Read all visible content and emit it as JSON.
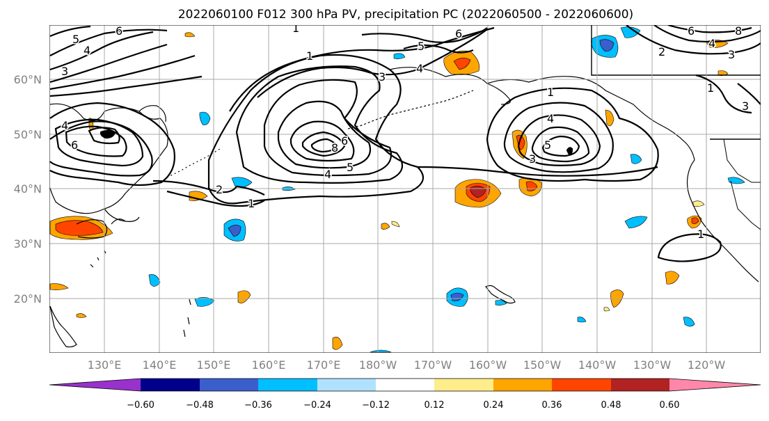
{
  "title": "2022060100 F012 300 hPa PV, precipitation PC (2022060500 - 2022060600)",
  "latitude_labels": [
    "60°N",
    "50°N",
    "40°N",
    "30°N",
    "20°N"
  ],
  "longitude_labels": [
    "130°E",
    "140°E",
    "150°E",
    "160°E",
    "170°E",
    "180°W",
    "170°W",
    "160°W",
    "150°W",
    "140°W",
    "130°W",
    "120°W"
  ],
  "colorbar": {
    "colors": [
      "#9932cc",
      "#00008b",
      "#3a5fcd",
      "#00bfff",
      "#b0e2ff",
      "#ffffff",
      "#ffec8b",
      "#ffa500",
      "#ff4500",
      "#b22222",
      "#ff88aa"
    ],
    "tick_labels": [
      "−0.60",
      "−0.48",
      "−0.36",
      "−0.24",
      "−0.12",
      "0.12",
      "0.24",
      "0.36",
      "0.48",
      "0.60"
    ]
  },
  "contour_labels": [
    "1",
    "2",
    "3",
    "4",
    "5",
    "6",
    "8"
  ]
}
